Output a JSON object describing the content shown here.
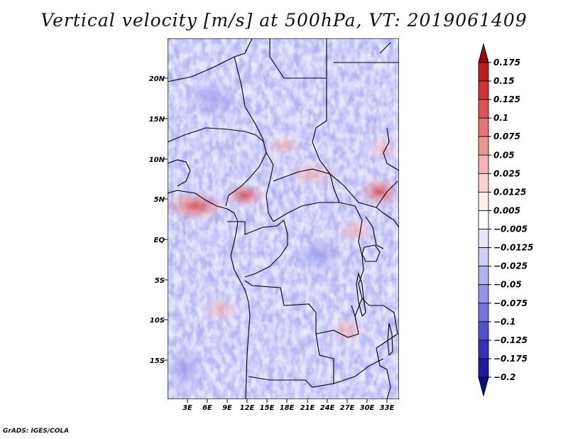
{
  "title": "Vertical velocity [m/s] at 500hPa, VT: 2019061409",
  "credit": "GrADS: IGES/COLA",
  "map": {
    "lat_labels": [
      "20N",
      "15N",
      "10N",
      "5N",
      "EQ",
      "5S",
      "10S",
      "15S"
    ],
    "lon_labels": [
      "3E",
      "6E",
      "9E",
      "12E",
      "15E",
      "18E",
      "21E",
      "24E",
      "27E",
      "30E",
      "33E"
    ]
  },
  "colorbar": {
    "labels": [
      "0.175",
      "0.15",
      "0.125",
      "0.1",
      "0.075",
      "0.05",
      "0.025",
      "0.0125",
      "0.005",
      "−0.005",
      "−0.0125",
      "−0.025",
      "−0.05",
      "−0.075",
      "−0.1",
      "−0.125",
      "−0.175",
      "−0.2"
    ],
    "colors": [
      "#9b0a0a",
      "#b71e1e",
      "#cc3333",
      "#dd5252",
      "#e87373",
      "#f09393",
      "#f6b2b2",
      "#fad2d2",
      "#fdeeee",
      "#ffffff",
      "#e6e6fb",
      "#cdcdf6",
      "#b1b1f0",
      "#9494e9",
      "#7474df",
      "#5252cf",
      "#3232bb",
      "#1c1ca3",
      "#0c0c86"
    ]
  }
}
